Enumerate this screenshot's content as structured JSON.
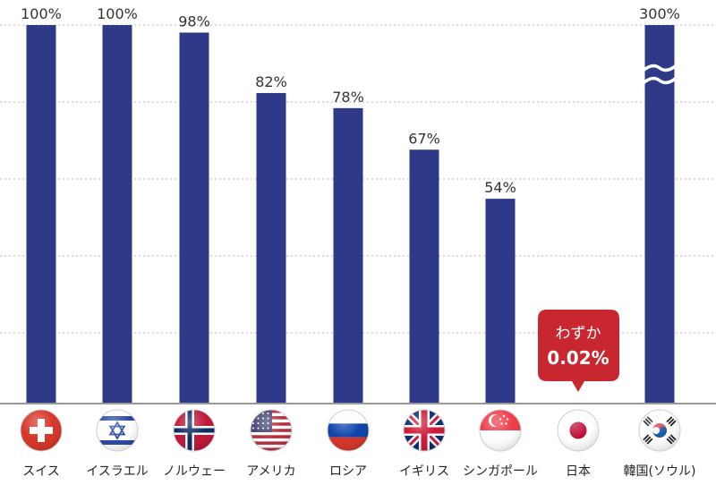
{
  "chart_data": {
    "type": "bar",
    "categories": [
      "スイス",
      "イスラエル",
      "ノルウェー",
      "アメリカ",
      "ロシア",
      "イギリス",
      "シンガポール",
      "日本",
      "韓国(ソウル)"
    ],
    "values": [
      100,
      100,
      98,
      82,
      78,
      67,
      54,
      0.02,
      300
    ],
    "value_labels": [
      "100%",
      "100%",
      "98%",
      "82%",
      "78%",
      "67%",
      "54%",
      "",
      "300%"
    ],
    "flags": [
      "swiss-flag-icon",
      "israel-flag-icon",
      "norway-flag-icon",
      "usa-flag-icon",
      "russia-flag-icon",
      "uk-flag-icon",
      "singapore-flag-icon",
      "japan-flag-icon",
      "korea-flag-icon"
    ],
    "ylim": [
      0,
      100
    ],
    "grid": true,
    "axis_break_category": "韓国(ソウル)",
    "colors": {
      "bar": "#2e3a87",
      "callout": "#c8272f",
      "grid": "#b8b8b8",
      "baseline": "#777777"
    }
  },
  "callout": {
    "category": "日本",
    "line1": "わずか",
    "line2": "0.02%"
  }
}
